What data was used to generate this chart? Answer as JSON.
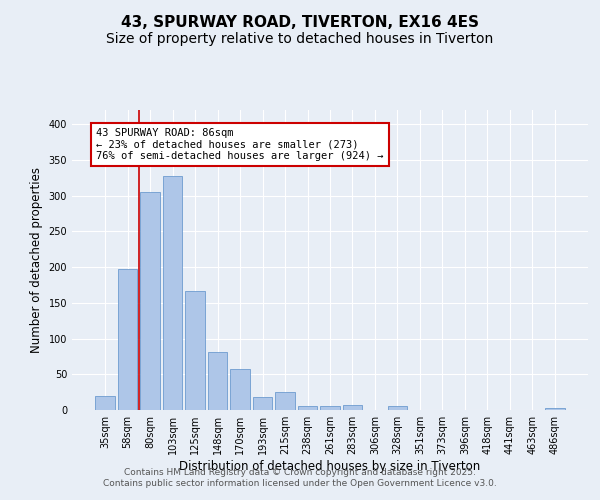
{
  "title_line1": "43, SPURWAY ROAD, TIVERTON, EX16 4ES",
  "title_line2": "Size of property relative to detached houses in Tiverton",
  "xlabel": "Distribution of detached houses by size in Tiverton",
  "ylabel": "Number of detached properties",
  "bar_labels": [
    "35sqm",
    "58sqm",
    "80sqm",
    "103sqm",
    "125sqm",
    "148sqm",
    "170sqm",
    "193sqm",
    "215sqm",
    "238sqm",
    "261sqm",
    "283sqm",
    "306sqm",
    "328sqm",
    "351sqm",
    "373sqm",
    "396sqm",
    "418sqm",
    "441sqm",
    "463sqm",
    "486sqm"
  ],
  "bar_values": [
    20,
    197,
    305,
    328,
    167,
    81,
    58,
    18,
    25,
    6,
    6,
    7,
    0,
    5,
    0,
    0,
    0,
    0,
    0,
    0,
    3
  ],
  "bar_color": "#aec6e8",
  "bar_edge_color": "#5b8fc9",
  "vline_x": 1.5,
  "annotation_text": "43 SPURWAY ROAD: 86sqm\n← 23% of detached houses are smaller (273)\n76% of semi-detached houses are larger (924) →",
  "annotation_box_color": "#ffffff",
  "annotation_box_edge": "#cc0000",
  "vline_color": "#cc0000",
  "ylim": [
    0,
    420
  ],
  "yticks": [
    0,
    50,
    100,
    150,
    200,
    250,
    300,
    350,
    400
  ],
  "background_color": "#e8eef6",
  "plot_background": "#e8eef6",
  "footer_line1": "Contains HM Land Registry data © Crown copyright and database right 2025.",
  "footer_line2": "Contains public sector information licensed under the Open Government Licence v3.0.",
  "title_fontsize": 11,
  "subtitle_fontsize": 10,
  "axis_label_fontsize": 8.5,
  "tick_fontsize": 7,
  "annotation_fontsize": 7.5,
  "footer_fontsize": 6.5
}
